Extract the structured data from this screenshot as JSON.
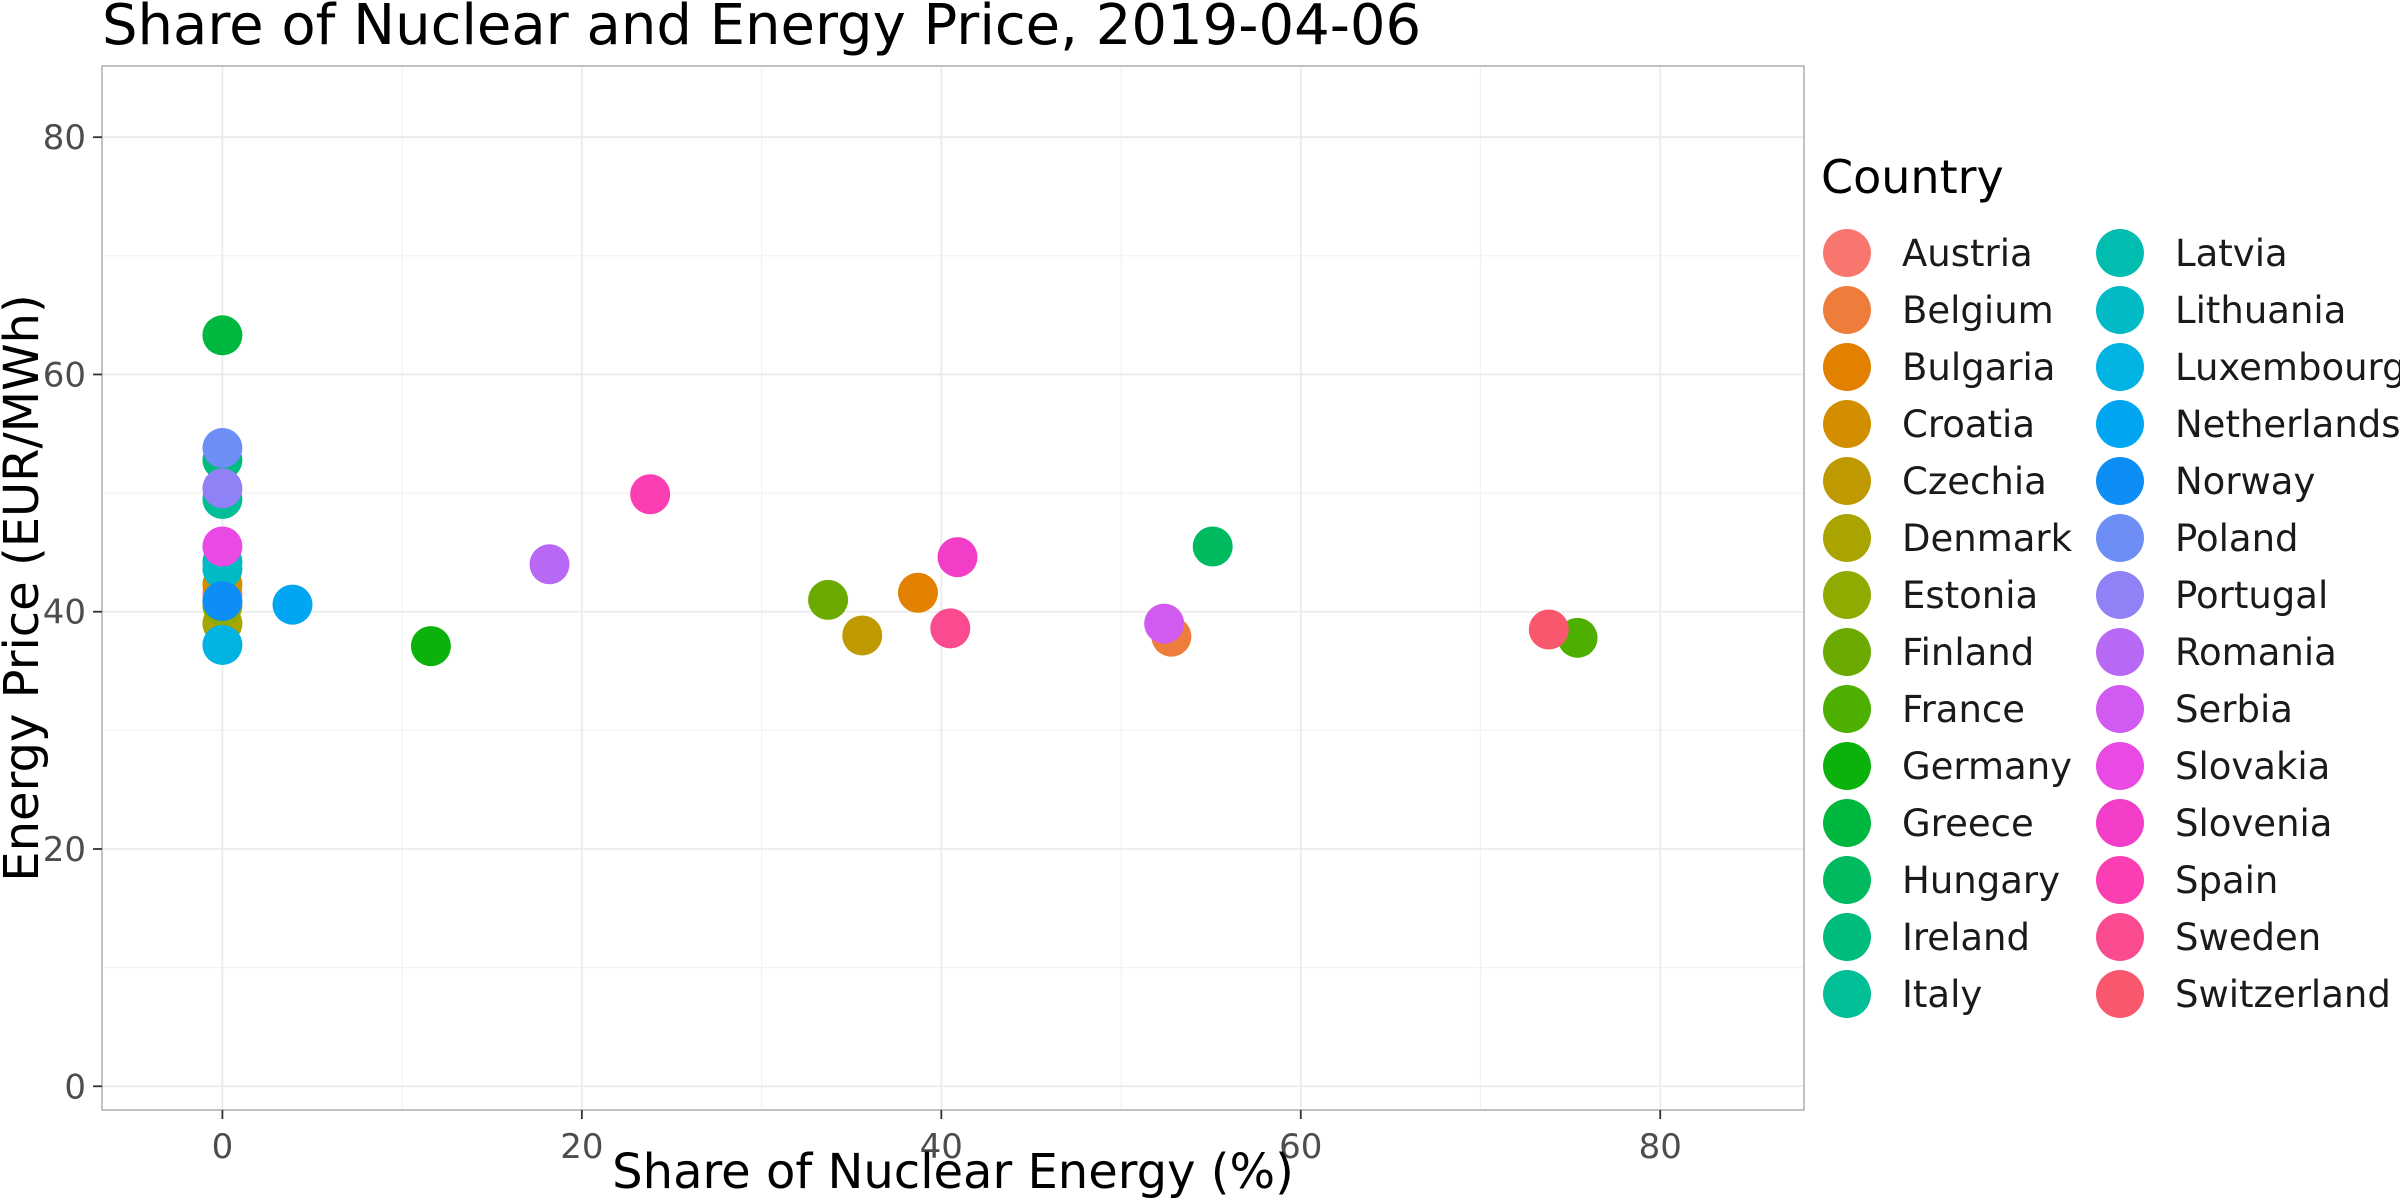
{
  "chart_data": {
    "type": "scatter",
    "title": "Share of Nuclear and Energy Price, 2019-04-06",
    "xlabel": "Share of Nuclear Energy (%)",
    "ylabel": "Energy Price (EUR/MWh)",
    "xlim": [
      -6.7,
      88
    ],
    "ylim": [
      -2,
      86
    ],
    "xticks": [
      "0",
      "20",
      "40",
      "60",
      "80"
    ],
    "yticks": [
      "0",
      "20",
      "40",
      "60",
      "80"
    ],
    "xtick_values": [
      0,
      20,
      40,
      60,
      80
    ],
    "ytick_values": [
      0,
      20,
      40,
      60,
      80
    ],
    "grid": true,
    "legend": {
      "title": "Country",
      "position": "right",
      "columns": 2
    },
    "series": [
      {
        "name": "Austria",
        "color": "#F8766D",
        "x": [
          0
        ],
        "y": [
          41.5
        ]
      },
      {
        "name": "Belgium",
        "color": "#EE7D3B",
        "x": [
          52.8
        ],
        "y": [
          37.9
        ]
      },
      {
        "name": "Bulgaria",
        "color": "#E28000",
        "x": [
          38.7
        ],
        "y": [
          41.6
        ]
      },
      {
        "name": "Croatia",
        "color": "#D38E00",
        "x": [
          0
        ],
        "y": [
          42.3
        ]
      },
      {
        "name": "Czechia",
        "color": "#BE9A00",
        "x": [
          35.6
        ],
        "y": [
          38.0
        ]
      },
      {
        "name": "Denmark",
        "color": "#A9A400",
        "x": [
          0
        ],
        "y": [
          39.0
        ]
      },
      {
        "name": "Estonia",
        "color": "#8FAA00",
        "x": [
          0
        ],
        "y": [
          40.5
        ]
      },
      {
        "name": "Finland",
        "color": "#6BAA00",
        "x": [
          33.7
        ],
        "y": [
          41.0
        ]
      },
      {
        "name": "France",
        "color": "#4DAF00",
        "x": [
          75.4
        ],
        "y": [
          37.8
        ]
      },
      {
        "name": "Germany",
        "color": "#0CB20C",
        "x": [
          11.6
        ],
        "y": [
          37.1
        ]
      },
      {
        "name": "Greece",
        "color": "#00B83F",
        "x": [
          0
        ],
        "y": [
          63.3
        ]
      },
      {
        "name": "Hungary",
        "color": "#00BA60",
        "x": [
          55.1
        ],
        "y": [
          45.5
        ]
      },
      {
        "name": "Ireland",
        "color": "#00BC7C",
        "x": [
          0
        ],
        "y": [
          52.8
        ]
      },
      {
        "name": "Italy",
        "color": "#00BE96",
        "x": [
          0
        ],
        "y": [
          49.5
        ]
      },
      {
        "name": "Latvia",
        "color": "#00BDAF",
        "x": [
          0
        ],
        "y": [
          44.2
        ]
      },
      {
        "name": "Lithuania",
        "color": "#00BAC5",
        "x": [
          0
        ],
        "y": [
          43.6
        ]
      },
      {
        "name": "Luxembourg",
        "color": "#00B3E2",
        "x": [
          0
        ],
        "y": [
          37.2
        ]
      },
      {
        "name": "Netherlands",
        "color": "#00A6F2",
        "x": [
          3.9
        ],
        "y": [
          40.6
        ]
      },
      {
        "name": "Norway",
        "color": "#0D8EF6",
        "x": [
          0
        ],
        "y": [
          40.9
        ]
      },
      {
        "name": "Poland",
        "color": "#6D8EF5",
        "x": [
          0
        ],
        "y": [
          53.8
        ]
      },
      {
        "name": "Portugal",
        "color": "#9181F7",
        "x": [
          0
        ],
        "y": [
          50.4
        ]
      },
      {
        "name": "Romania",
        "color": "#B768F5",
        "x": [
          18.2
        ],
        "y": [
          44.0
        ]
      },
      {
        "name": "Serbia",
        "color": "#D15BF0",
        "x": [
          52.4
        ],
        "y": [
          39.0
        ]
      },
      {
        "name": "Slovakia",
        "color": "#E94AE4",
        "x": [
          0
        ],
        "y": [
          45.5
        ]
      },
      {
        "name": "Slovenia",
        "color": "#F23DC8",
        "x": [
          40.9
        ],
        "y": [
          44.6
        ]
      },
      {
        "name": "Spain",
        "color": "#FB3EB2",
        "x": [
          23.8
        ],
        "y": [
          49.9
        ]
      },
      {
        "name": "Sweden",
        "color": "#FB4B90",
        "x": [
          40.5
        ],
        "y": [
          38.6
        ]
      },
      {
        "name": "Switzerland",
        "color": "#F8576E",
        "x": [
          73.8
        ],
        "y": [
          38.5
        ]
      }
    ]
  }
}
